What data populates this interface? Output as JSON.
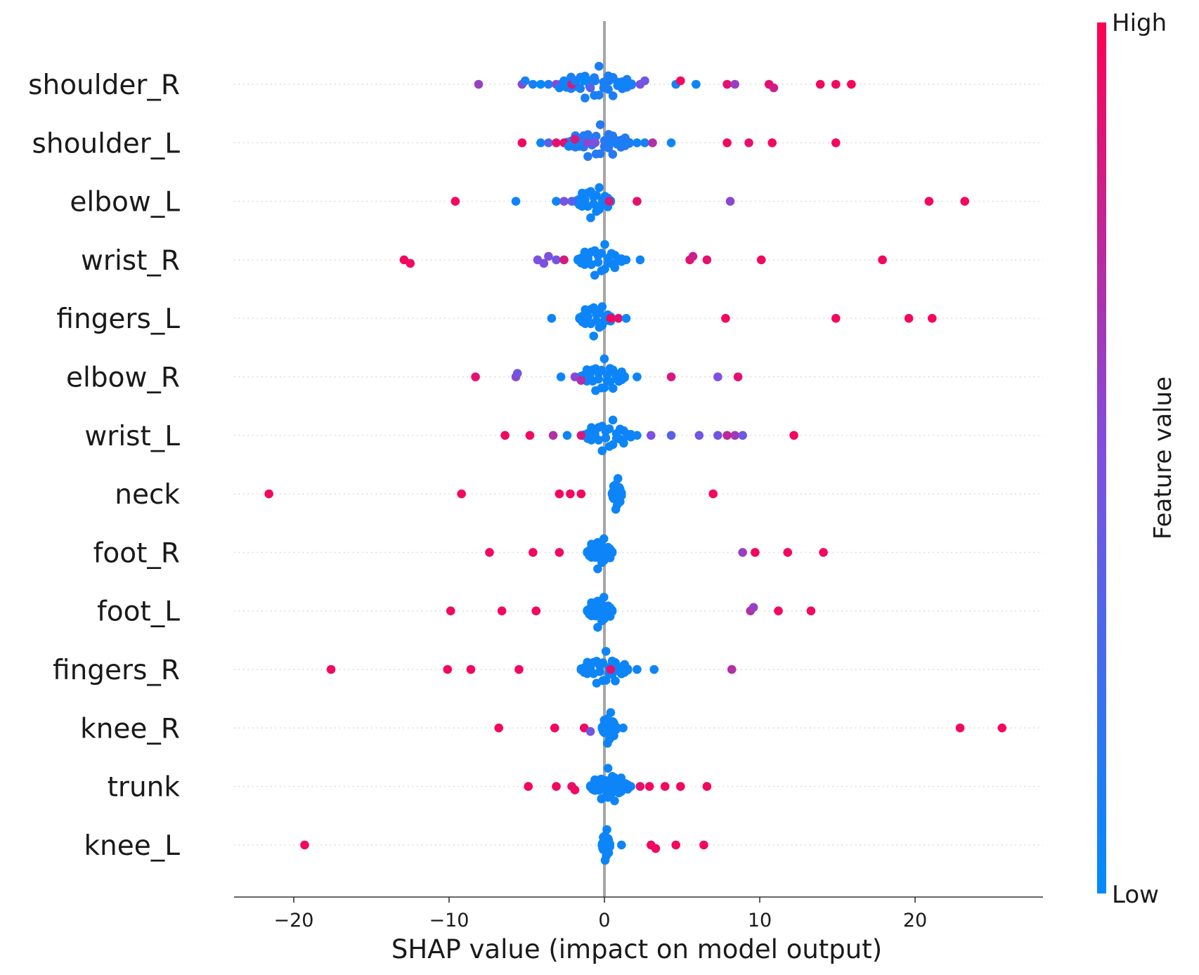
{
  "chart_data": {
    "type": "scatter",
    "subtype": "shap-beeswarm",
    "xlabel": "SHAP value (impact on model output)",
    "xlim": [
      -24,
      28
    ],
    "x_ticks": [
      -20,
      -10,
      0,
      10,
      20
    ],
    "x_tick_labels": [
      "−20",
      "−10",
      "0",
      "10",
      "20"
    ],
    "colorbar": {
      "title": "Feature value",
      "high_label": "High",
      "low_label": "Low",
      "low_color": "#008bfb",
      "high_color": "#ff0052"
    },
    "features": [
      {
        "name": "shoulder_R",
        "points": [
          [
            -8.1,
            0.6
          ],
          [
            -5.3,
            0.55
          ],
          [
            -5.1,
            0.1
          ],
          [
            -4.6,
            0.1
          ],
          [
            -4.1,
            0.0
          ],
          [
            -3.6,
            0.1
          ],
          [
            -3.1,
            0.55
          ],
          [
            -2.9,
            0.05
          ],
          [
            -2.6,
            0.05
          ],
          [
            -2.1,
            0.85
          ],
          [
            -1.9,
            0.1
          ],
          [
            -1.6,
            0.1
          ],
          [
            -1.3,
            0.0
          ],
          [
            -0.9,
            0.35
          ],
          [
            -0.6,
            0.1
          ],
          [
            0.0,
            0.1
          ],
          [
            0.3,
            0.1
          ],
          [
            0.9,
            0.05
          ],
          [
            1.4,
            0.05
          ],
          [
            2.3,
            0.5
          ],
          [
            2.6,
            0.45
          ],
          [
            4.6,
            0.1
          ],
          [
            4.9,
            0.95
          ],
          [
            5.9,
            0.05
          ],
          [
            7.9,
            0.9
          ],
          [
            8.4,
            0.6
          ],
          [
            10.6,
            0.9
          ],
          [
            10.9,
            0.8
          ],
          [
            13.9,
            0.95
          ],
          [
            14.9,
            0.95
          ],
          [
            15.9,
            0.95
          ]
        ],
        "cluster": {
          "center": -0.5,
          "width": 4.5,
          "n": 16,
          "color": 0.1
        }
      },
      {
        "name": "shoulder_L",
        "points": [
          [
            -5.3,
            0.95
          ],
          [
            -4.1,
            0.05
          ],
          [
            -3.6,
            0.35
          ],
          [
            -3.1,
            0.9
          ],
          [
            -2.6,
            0.9
          ],
          [
            -2.3,
            0.05
          ],
          [
            -1.9,
            0.85
          ],
          [
            -1.6,
            0.1
          ],
          [
            -1.1,
            0.55
          ],
          [
            -0.6,
            0.5
          ],
          [
            0.4,
            0.1
          ],
          [
            0.9,
            0.1
          ],
          [
            1.4,
            0.1
          ],
          [
            2.1,
            0.05
          ],
          [
            2.6,
            0.1
          ],
          [
            3.1,
            0.7
          ],
          [
            4.3,
            0.05
          ],
          [
            7.9,
            0.95
          ],
          [
            9.3,
            0.9
          ],
          [
            10.8,
            0.95
          ],
          [
            14.9,
            0.95
          ]
        ],
        "cluster": {
          "center": -0.4,
          "width": 4.0,
          "n": 16,
          "color": 0.15
        }
      },
      {
        "name": "elbow_L",
        "points": [
          [
            -9.6,
            0.95
          ],
          [
            -5.7,
            0.05
          ],
          [
            -3.1,
            0.05
          ],
          [
            -2.6,
            0.5
          ],
          [
            -2.1,
            0.35
          ],
          [
            0.3,
            0.85
          ],
          [
            2.1,
            0.9
          ],
          [
            8.1,
            0.55
          ],
          [
            20.9,
            0.95
          ],
          [
            23.2,
            0.95
          ]
        ],
        "cluster": {
          "center": -0.7,
          "width": 2.2,
          "n": 13,
          "color": 0.05
        }
      },
      {
        "name": "wrist_R",
        "points": [
          [
            -12.9,
            0.95
          ],
          [
            -12.5,
            0.95
          ],
          [
            -4.3,
            0.5
          ],
          [
            -3.9,
            0.5
          ],
          [
            -3.6,
            0.5
          ],
          [
            -3.1,
            0.45
          ],
          [
            -2.6,
            0.85
          ],
          [
            1.4,
            0.05
          ],
          [
            2.3,
            0.05
          ],
          [
            5.5,
            0.9
          ],
          [
            5.7,
            0.8
          ],
          [
            6.6,
            0.9
          ],
          [
            10.1,
            0.95
          ],
          [
            17.9,
            0.95
          ]
        ],
        "cluster": {
          "center": -0.3,
          "width": 2.8,
          "n": 14,
          "color": 0.05
        }
      },
      {
        "name": "fingers_L",
        "points": [
          [
            -3.4,
            0.05
          ],
          [
            0.4,
            0.95
          ],
          [
            0.9,
            0.9
          ],
          [
            1.4,
            0.05
          ],
          [
            7.8,
            0.95
          ],
          [
            14.9,
            0.95
          ],
          [
            19.6,
            0.95
          ],
          [
            21.1,
            0.95
          ]
        ],
        "cluster": {
          "center": -0.6,
          "width": 2.0,
          "n": 12,
          "color": 0.05
        }
      },
      {
        "name": "elbow_R",
        "points": [
          [
            -8.3,
            0.9
          ],
          [
            -5.7,
            0.55
          ],
          [
            -5.6,
            0.45
          ],
          [
            -2.8,
            0.05
          ],
          [
            -1.9,
            0.55
          ],
          [
            -1.5,
            0.7
          ],
          [
            2.1,
            0.05
          ],
          [
            4.3,
            0.85
          ],
          [
            7.3,
            0.5
          ],
          [
            8.6,
            0.9
          ]
        ],
        "cluster": {
          "center": -0.1,
          "width": 2.8,
          "n": 16,
          "color": 0.05
        }
      },
      {
        "name": "wrist_L",
        "points": [
          [
            -6.4,
            0.95
          ],
          [
            -4.8,
            0.95
          ],
          [
            -3.3,
            0.7
          ],
          [
            -2.4,
            0.05
          ],
          [
            -1.5,
            0.85
          ],
          [
            2.1,
            0.05
          ],
          [
            3.0,
            0.5
          ],
          [
            4.3,
            0.35
          ],
          [
            6.1,
            0.45
          ],
          [
            7.3,
            0.45
          ],
          [
            7.9,
            0.75
          ],
          [
            8.4,
            0.65
          ],
          [
            8.9,
            0.45
          ],
          [
            12.2,
            0.95
          ]
        ],
        "cluster": {
          "center": 0.2,
          "width": 3.0,
          "n": 14,
          "color": 0.05
        }
      },
      {
        "name": "neck",
        "points": [
          [
            -21.6,
            0.95
          ],
          [
            -9.2,
            0.95
          ],
          [
            -2.9,
            0.95
          ],
          [
            -2.2,
            0.95
          ],
          [
            -1.5,
            0.95
          ],
          [
            7.0,
            0.95
          ]
        ],
        "cluster": {
          "center": 0.8,
          "width": 0.6,
          "n": 14,
          "color": 0.05
        }
      },
      {
        "name": "foot_R",
        "points": [
          [
            -7.4,
            0.95
          ],
          [
            -4.6,
            0.95
          ],
          [
            -2.9,
            0.95
          ],
          [
            8.9,
            0.6
          ],
          [
            9.7,
            0.95
          ],
          [
            11.8,
            0.95
          ],
          [
            14.1,
            0.95
          ]
        ],
        "cluster": {
          "center": -0.3,
          "width": 1.6,
          "n": 13,
          "color": 0.05
        }
      },
      {
        "name": "foot_L",
        "points": [
          [
            -9.9,
            0.95
          ],
          [
            -6.6,
            0.95
          ],
          [
            -4.4,
            0.95
          ],
          [
            9.4,
            0.7
          ],
          [
            9.6,
            0.6
          ],
          [
            11.2,
            0.95
          ],
          [
            13.3,
            0.95
          ]
        ],
        "cluster": {
          "center": -0.3,
          "width": 1.6,
          "n": 13,
          "color": 0.05
        }
      },
      {
        "name": "fingers_R",
        "points": [
          [
            -17.6,
            0.95
          ],
          [
            -10.1,
            0.95
          ],
          [
            -8.6,
            0.95
          ],
          [
            -5.5,
            0.95
          ],
          [
            0.4,
            0.9
          ],
          [
            1.4,
            0.05
          ],
          [
            2.1,
            0.05
          ],
          [
            3.2,
            0.05
          ],
          [
            8.2,
            0.7
          ]
        ],
        "cluster": {
          "center": 0.0,
          "width": 3.0,
          "n": 16,
          "color": 0.05
        }
      },
      {
        "name": "knee_R",
        "points": [
          [
            -6.8,
            0.95
          ],
          [
            -3.2,
            0.95
          ],
          [
            -1.3,
            0.95
          ],
          [
            -0.9,
            0.45
          ],
          [
            1.2,
            0.05
          ],
          [
            22.9,
            0.95
          ],
          [
            25.6,
            0.95
          ]
        ],
        "cluster": {
          "center": 0.3,
          "width": 0.9,
          "n": 14,
          "color": 0.05
        }
      },
      {
        "name": "trunk",
        "points": [
          [
            -4.9,
            0.95
          ],
          [
            -3.1,
            0.95
          ],
          [
            -2.1,
            0.9
          ],
          [
            -1.9,
            0.95
          ],
          [
            1.7,
            0.05
          ],
          [
            2.3,
            0.9
          ],
          [
            2.9,
            0.95
          ],
          [
            3.9,
            0.95
          ],
          [
            4.9,
            0.95
          ],
          [
            6.6,
            0.95
          ]
        ],
        "cluster": {
          "center": 0.3,
          "width": 2.4,
          "n": 18,
          "color": 0.05
        }
      },
      {
        "name": "knee_L",
        "points": [
          [
            -19.3,
            0.95
          ],
          [
            1.1,
            0.05
          ],
          [
            3.0,
            0.95
          ],
          [
            3.3,
            0.95
          ],
          [
            4.6,
            0.95
          ],
          [
            6.4,
            0.95
          ]
        ],
        "cluster": {
          "center": 0.1,
          "width": 0.5,
          "n": 14,
          "color": 0.05
        }
      }
    ]
  }
}
